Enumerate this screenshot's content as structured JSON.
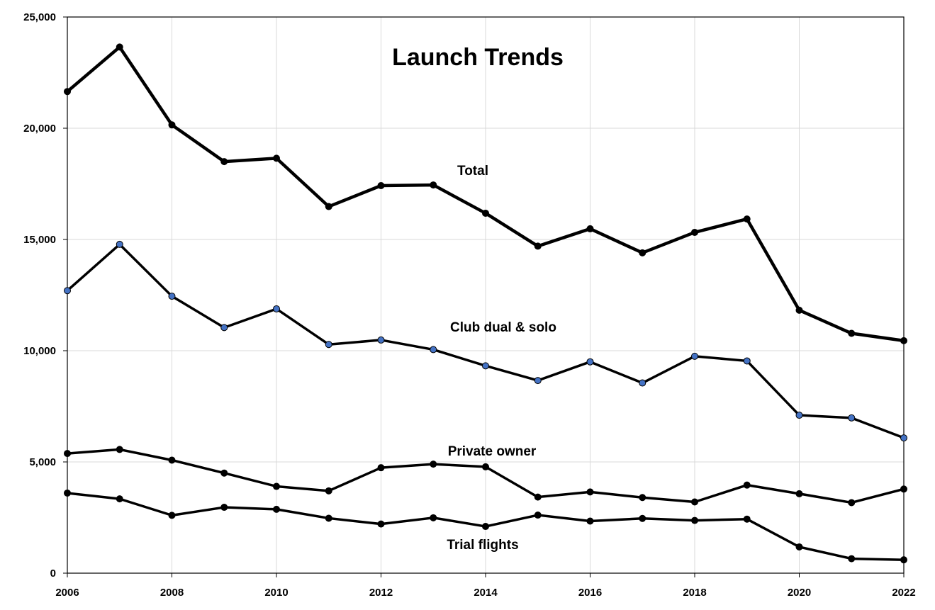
{
  "chart_data": {
    "type": "line",
    "title": "Launch Trends",
    "x": [
      2006,
      2007,
      2008,
      2009,
      2010,
      2011,
      2012,
      2013,
      2014,
      2015,
      2016,
      2017,
      2018,
      2019,
      2020,
      2021,
      2022
    ],
    "x_tick_labels": [
      "2006",
      "2008",
      "2010",
      "2012",
      "2014",
      "2016",
      "2018",
      "2020",
      "2022"
    ],
    "xlim": [
      2006,
      2022
    ],
    "ylim": [
      0,
      25000
    ],
    "y_tick_labels": [
      "0",
      "5,000",
      "10,000",
      "15,000",
      "20,000",
      "25,000"
    ],
    "grid": true,
    "series": [
      {
        "name": "Total",
        "color": "#000000",
        "marker_color": "#000000",
        "values": [
          21650,
          23650,
          20150,
          18500,
          18650,
          16480,
          17420,
          17450,
          16180,
          14700,
          15480,
          14400,
          15320,
          15920,
          11820,
          10780,
          10450
        ]
      },
      {
        "name": "Club dual & solo",
        "color": "#000000",
        "marker_color": "#4472c4",
        "values": [
          12700,
          14780,
          12450,
          11040,
          11880,
          10280,
          10480,
          10050,
          9320,
          8660,
          9500,
          8550,
          9750,
          9540,
          7100,
          6980,
          6080
        ]
      },
      {
        "name": "Private owner",
        "color": "#000000",
        "marker_color": "#000000",
        "values": [
          5380,
          5560,
          5080,
          4500,
          3900,
          3700,
          4740,
          4900,
          4780,
          3420,
          3650,
          3400,
          3200,
          3960,
          3570,
          3170,
          3780
        ]
      },
      {
        "name": "Trial flights",
        "color": "#000000",
        "marker_color": "#000000",
        "values": [
          3600,
          3340,
          2600,
          2960,
          2870,
          2470,
          2210,
          2490,
          2100,
          2610,
          2340,
          2460,
          2370,
          2430,
          1180,
          650,
          600
        ]
      }
    ]
  }
}
